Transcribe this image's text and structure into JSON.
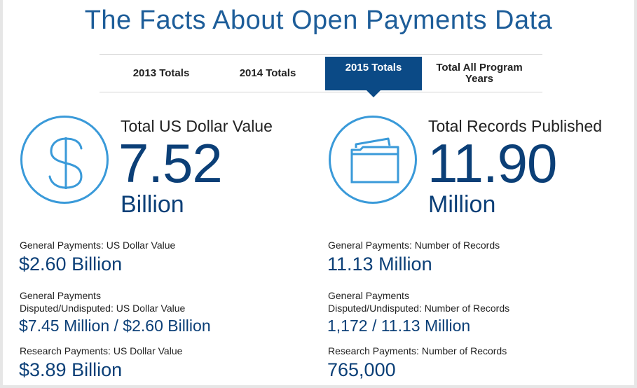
{
  "page": {
    "title": "The Facts About Open Payments Data"
  },
  "tabs": [
    {
      "label": "2013 Totals",
      "active": false
    },
    {
      "label": "2014 Totals",
      "active": false
    },
    {
      "label": "2015 Totals",
      "active": true
    },
    {
      "label": "Total All Program Years",
      "active": false
    }
  ],
  "left_stat": {
    "icon": "dollar-icon",
    "label": "Total US Dollar Value",
    "number": "7.52",
    "unit": "Billion"
  },
  "right_stat": {
    "icon": "folder-icon",
    "label": "Total Records Published",
    "number": "11.90",
    "unit": "Million"
  },
  "left_details": [
    {
      "label_lines": [
        "General Payments: US Dollar Value"
      ],
      "value": "$2.60 Billion"
    },
    {
      "label_lines": [
        "General Payments",
        "Disputed/Undisputed: US Dollar Value"
      ],
      "value": "$7.45 Million / $2.60 Billion"
    },
    {
      "label_lines": [
        "Research Payments: US Dollar Value"
      ],
      "value": "$3.89 Billion"
    }
  ],
  "right_details": [
    {
      "label_lines": [
        "General Payments: Number of Records"
      ],
      "value": "11.13 Million"
    },
    {
      "label_lines": [
        "General Payments",
        "Disputed/Undisputed: Number of Records"
      ],
      "value": "1,172 / 11.13 Million"
    },
    {
      "label_lines": [
        "Research Payments: Number of Records"
      ],
      "value": "765,000"
    }
  ],
  "colors": {
    "accent": "#0b4a86",
    "title": "#1d5d99",
    "icon_ring": "#3a9ad9",
    "value": "#0b3f77"
  }
}
